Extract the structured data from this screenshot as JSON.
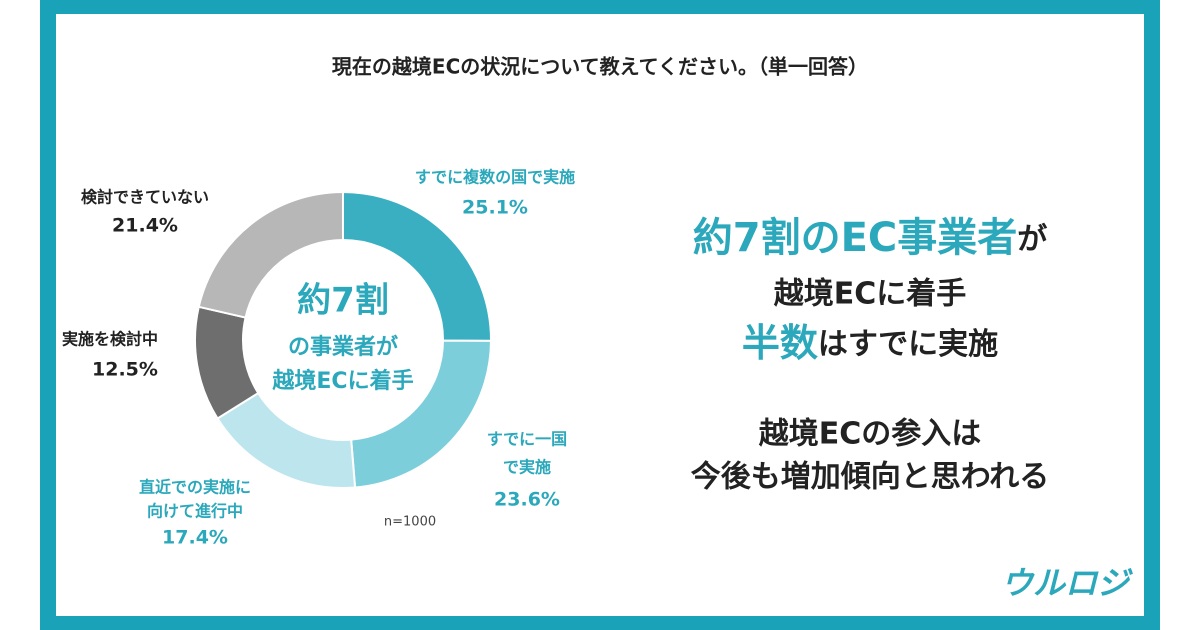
{
  "chart_data": {
    "type": "donut",
    "title": "現在の越境ECの状況について教えてください。（単一回答）",
    "labels": [
      [
        "すでに複数の国で実施"
      ],
      [
        "すでに一国",
        "で実施"
      ],
      [
        "直近での実施に",
        "向けて進行中"
      ],
      [
        "実施を検討中"
      ],
      [
        "検討できていない"
      ]
    ],
    "values": [
      25.1,
      23.6,
      17.4,
      12.5,
      21.4
    ],
    "value_labels": [
      "25.1%",
      "23.6%",
      "17.4%",
      "12.5%",
      "21.4%"
    ],
    "colors": [
      "#3aafc1",
      "#7dcedb",
      "#bce5ee",
      "#6e6e6e",
      "#b7b7b7"
    ],
    "center_text": [
      "約7割",
      "の事業者が",
      "越境ECに着手"
    ],
    "note": "n=1000"
  },
  "callout": {
    "lines": [
      [
        "約7割のEC事業者",
        "が"
      ],
      [
        "越境ECに着手"
      ],
      [
        "半数",
        "はすでに実施"
      ]
    ],
    "conclusion": [
      "越境ECの参入は",
      "今後も増加傾向と思われる"
    ]
  },
  "logo": "ウルロジ"
}
